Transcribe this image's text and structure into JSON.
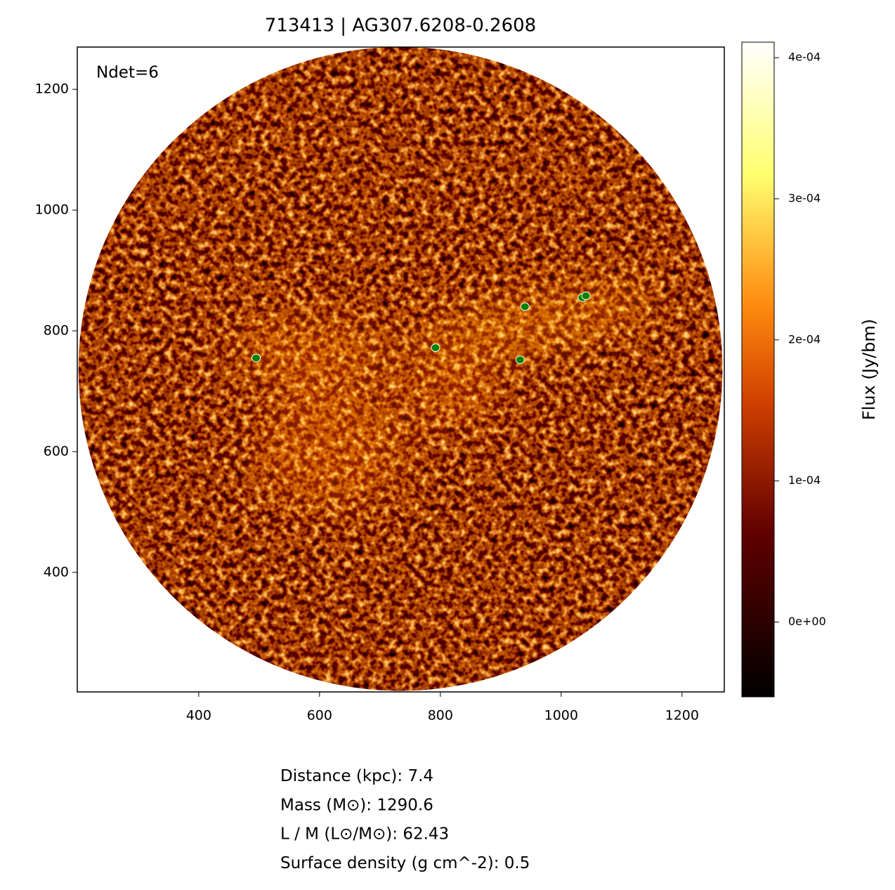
{
  "chart_data": {
    "type": "image",
    "title": "713413 | AG307.6208-0.2608",
    "annotation": "Ndet=6",
    "xlim": [
      199,
      1270
    ],
    "ylim": [
      202,
      1270
    ],
    "xticks": [
      400,
      600,
      800,
      1000,
      1200
    ],
    "yticks": [
      400,
      600,
      800,
      1000,
      1200
    ],
    "field": {
      "x": 734,
      "y": 737,
      "r": 533
    },
    "detections": {
      "color": "#008000",
      "x": [
        495,
        792,
        940,
        932,
        1035,
        1041
      ],
      "y": [
        755,
        772,
        840,
        752,
        855,
        858
      ]
    },
    "colorbar": {
      "label": "Flux (Jy/bm)",
      "clim": [
        -5.3e-05,
        0.000411
      ],
      "ticks": [
        {
          "value": 0,
          "label": "0e+00"
        },
        {
          "value": 0.0001,
          "label": "1e-04"
        },
        {
          "value": 0.0002,
          "label": "2e-04"
        },
        {
          "value": 0.0003,
          "label": "3e-04"
        },
        {
          "value": 0.0004,
          "label": "4e-04"
        }
      ]
    },
    "info": [
      {
        "label": "Distance (kpc)",
        "value": 7.4
      },
      {
        "label": "Mass (M⊙)",
        "value": 1290.6
      },
      {
        "label": "L / M (L⊙/M⊙)",
        "value": 62.43
      },
      {
        "label": "Surface density (g cm^-2)",
        "value": 0.5
      }
    ]
  }
}
